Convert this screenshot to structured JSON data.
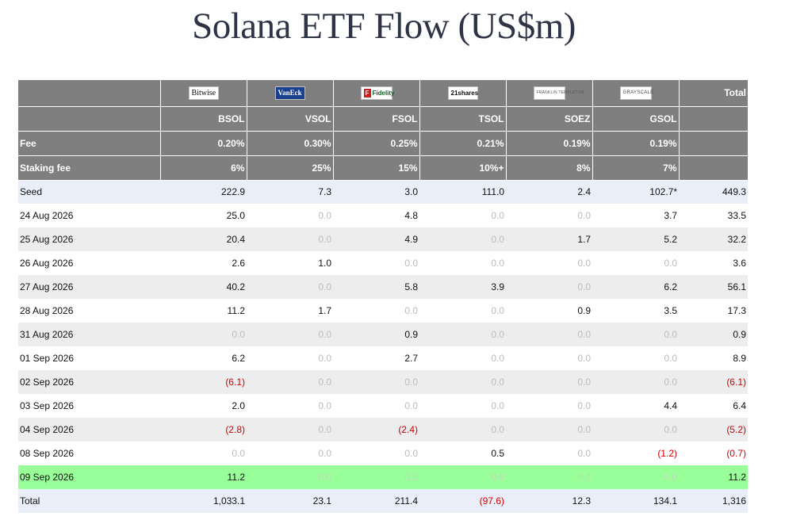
{
  "title": "Solana ETF Flow (US$m)",
  "colors": {
    "header_bg": "#7f7f7f",
    "seed_total_bg": "#e9eef8",
    "alt_row_bg": "#ededed",
    "highlight_bg": "#99ff99",
    "negative": "#d00000",
    "muted": "#bdbdbd"
  },
  "header": {
    "issuers": [
      {
        "logo_text": "Bitwise",
        "icon": "bitwise-logo"
      },
      {
        "logo_text": "VanEck",
        "icon": "vaneck-logo"
      },
      {
        "logo_text": "Fidelity",
        "icon": "fidelity-logo"
      },
      {
        "logo_text": "21shares",
        "icon": "21shares-logo"
      },
      {
        "logo_text": "FRANKLIN TEMPLETON",
        "icon": "franklin-templeton-logo"
      },
      {
        "logo_text": "GRAYSCALE",
        "icon": "grayscale-logo"
      }
    ],
    "total_label": "Total",
    "tickers": [
      "BSOL",
      "VSOL",
      "FSOL",
      "TSOL",
      "SOEZ",
      "GSOL"
    ],
    "fee_label": "Fee",
    "fees": [
      "0.20%",
      "0.30%",
      "0.25%",
      "0.21%",
      "0.19%",
      "0.19%"
    ],
    "staking_label": "Staking fee",
    "staking": [
      "6%",
      "25%",
      "15%",
      "10%+",
      "8%",
      "7%"
    ]
  },
  "rows": [
    {
      "label": "Seed",
      "values": [
        "222.9",
        "7.3",
        "3.0",
        "111.0",
        "2.4",
        "102.7*"
      ],
      "total": "449.3"
    },
    {
      "label": "24 Aug 2026",
      "values": [
        "25.0",
        "0.0",
        "4.8",
        "0.0",
        "0.0",
        "3.7"
      ],
      "total": "33.5"
    },
    {
      "label": "25 Aug 2026",
      "values": [
        "20.4",
        "0.0",
        "4.9",
        "0.0",
        "1.7",
        "5.2"
      ],
      "total": "32.2"
    },
    {
      "label": "26 Aug 2026",
      "values": [
        "2.6",
        "1.0",
        "0.0",
        "0.0",
        "0.0",
        "0.0"
      ],
      "total": "3.6"
    },
    {
      "label": "27 Aug 2026",
      "values": [
        "40.2",
        "0.0",
        "5.8",
        "3.9",
        "0.0",
        "6.2"
      ],
      "total": "56.1"
    },
    {
      "label": "28 Aug 2026",
      "values": [
        "11.2",
        "1.7",
        "0.0",
        "0.0",
        "0.9",
        "3.5"
      ],
      "total": "17.3"
    },
    {
      "label": "31 Aug 2026",
      "values": [
        "0.0",
        "0.0",
        "0.9",
        "0.0",
        "0.0",
        "0.0"
      ],
      "total": "0.9"
    },
    {
      "label": "01 Sep 2026",
      "values": [
        "6.2",
        "0.0",
        "2.7",
        "0.0",
        "0.0",
        "0.0"
      ],
      "total": "8.9"
    },
    {
      "label": "02 Sep 2026",
      "values": [
        "(6.1)",
        "0.0",
        "0.0",
        "0.0",
        "0.0",
        "0.0"
      ],
      "total": "(6.1)"
    },
    {
      "label": "03 Sep 2026",
      "values": [
        "2.0",
        "0.0",
        "0.0",
        "0.0",
        "0.0",
        "4.4"
      ],
      "total": "6.4"
    },
    {
      "label": "04 Sep 2026",
      "values": [
        "(2.8)",
        "0.0",
        "(2.4)",
        "0.0",
        "0.0",
        "0.0"
      ],
      "total": "(5.2)"
    },
    {
      "label": "08 Sep 2026",
      "values": [
        "0.0",
        "0.0",
        "0.0",
        "0.5",
        "0.0",
        "(1.2)"
      ],
      "total": "(0.7)"
    },
    {
      "label": "09 Sep 2026",
      "values": [
        "11.2",
        "0.0",
        "0.0",
        "0.0",
        "0.0",
        "0.0"
      ],
      "total": "11.2"
    },
    {
      "label": "Total",
      "values": [
        "1,033.1",
        "23.1",
        "211.4",
        "(97.6)",
        "12.3",
        "134.1"
      ],
      "total": "1,316"
    }
  ]
}
